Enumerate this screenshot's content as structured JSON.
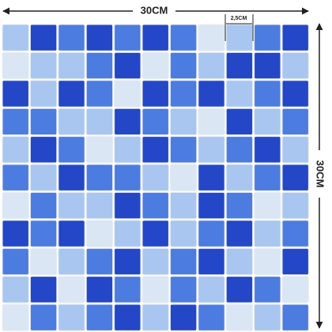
{
  "labels": {
    "top_width": "30CM",
    "tile_size": "2,5CM",
    "right_height": "30CM"
  }
}
